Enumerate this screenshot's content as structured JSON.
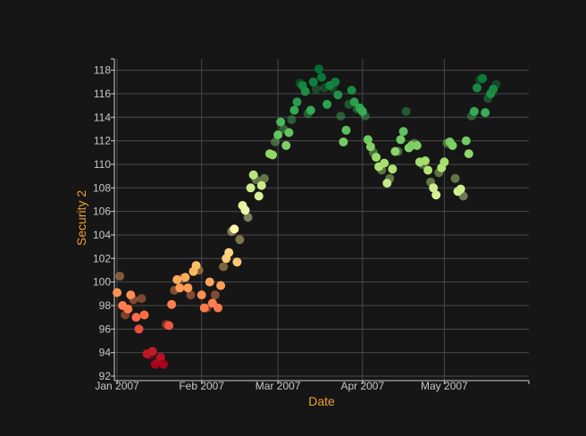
{
  "chart_data": {
    "type": "scatter",
    "xlabel": "Date",
    "ylabel": "Security 2",
    "x_ticks": [
      "Jan 2007",
      "Feb 2007",
      "Mar 2007",
      "Apr 2007",
      "May 2007"
    ],
    "x_tick_dates": [
      "2007-01-01",
      "2007-02-01",
      "2007-03-01",
      "2007-04-01",
      "2007-05-01"
    ],
    "xlim": [
      "2006-12-31",
      "2007-06-01"
    ],
    "y_ticks": [
      92,
      94,
      96,
      98,
      100,
      102,
      104,
      106,
      108,
      110,
      112,
      114,
      116,
      118
    ],
    "ylim": [
      92,
      119
    ],
    "grid": true,
    "color_scale": "red-yellow-green by y value",
    "points": [
      [
        "2007-01-02",
        100.5
      ],
      [
        "2007-01-01",
        99.1
      ],
      [
        "2007-01-03",
        98.0
      ],
      [
        "2007-01-04",
        97.2
      ],
      [
        "2007-01-05",
        97.7
      ],
      [
        "2007-01-06",
        98.9
      ],
      [
        "2007-01-07",
        98.5
      ],
      [
        "2007-01-08",
        97.0
      ],
      [
        "2007-01-09",
        96.0
      ],
      [
        "2007-01-10",
        98.6
      ],
      [
        "2007-01-11",
        97.2
      ],
      [
        "2007-01-12",
        93.9
      ],
      [
        "2007-01-13",
        93.8
      ],
      [
        "2007-01-14",
        94.1
      ],
      [
        "2007-01-15",
        93.0
      ],
      [
        "2007-01-16",
        93.4
      ],
      [
        "2007-01-17",
        93.6
      ],
      [
        "2007-01-18",
        93.0
      ],
      [
        "2007-01-19",
        96.4
      ],
      [
        "2007-01-20",
        96.3
      ],
      [
        "2007-01-21",
        98.1
      ],
      [
        "2007-01-22",
        99.3
      ],
      [
        "2007-01-23",
        100.2
      ],
      [
        "2007-01-24",
        99.5
      ],
      [
        "2007-01-25",
        100.3
      ],
      [
        "2007-01-26",
        100.4
      ],
      [
        "2007-01-27",
        99.5
      ],
      [
        "2007-01-28",
        98.9
      ],
      [
        "2007-01-29",
        100.9
      ],
      [
        "2007-01-30",
        101.4
      ],
      [
        "2007-01-31",
        101.0
      ],
      [
        "2007-02-01",
        98.9
      ],
      [
        "2007-02-02",
        97.8
      ],
      [
        "2007-02-03",
        97.8
      ],
      [
        "2007-02-04",
        100.0
      ],
      [
        "2007-02-05",
        98.2
      ],
      [
        "2007-02-06",
        98.9
      ],
      [
        "2007-02-07",
        97.8
      ],
      [
        "2007-02-08",
        99.7
      ],
      [
        "2007-02-09",
        101.3
      ],
      [
        "2007-02-10",
        102.0
      ],
      [
        "2007-02-11",
        102.5
      ],
      [
        "2007-02-12",
        104.3
      ],
      [
        "2007-02-13",
        104.5
      ],
      [
        "2007-02-14",
        101.7
      ],
      [
        "2007-02-15",
        103.6
      ],
      [
        "2007-02-16",
        106.5
      ],
      [
        "2007-02-17",
        106.1
      ],
      [
        "2007-02-18",
        105.5
      ],
      [
        "2007-02-19",
        108.0
      ],
      [
        "2007-02-20",
        109.1
      ],
      [
        "2007-02-21",
        108.7
      ],
      [
        "2007-02-22",
        107.3
      ],
      [
        "2007-02-23",
        108.2
      ],
      [
        "2007-02-24",
        108.8
      ],
      [
        "2007-02-26",
        110.9
      ],
      [
        "2007-02-27",
        110.8
      ],
      [
        "2007-02-28",
        111.9
      ],
      [
        "2007-03-01",
        112.5
      ],
      [
        "2007-03-02",
        113.6
      ],
      [
        "2007-03-03",
        113.0
      ],
      [
        "2007-03-04",
        111.6
      ],
      [
        "2007-03-05",
        112.7
      ],
      [
        "2007-03-06",
        113.8
      ],
      [
        "2007-03-07",
        114.6
      ],
      [
        "2007-03-08",
        115.3
      ],
      [
        "2007-03-09",
        116.9
      ],
      [
        "2007-03-10",
        116.7
      ],
      [
        "2007-03-11",
        116.2
      ],
      [
        "2007-03-12",
        114.3
      ],
      [
        "2007-03-13",
        114.6
      ],
      [
        "2007-03-14",
        117.0
      ],
      [
        "2007-03-15",
        116.4
      ],
      [
        "2007-03-16",
        118.1
      ],
      [
        "2007-03-17",
        117.4
      ],
      [
        "2007-03-18",
        116.5
      ],
      [
        "2007-03-19",
        115.1
      ],
      [
        "2007-03-20",
        116.7
      ],
      [
        "2007-03-21",
        116.5
      ],
      [
        "2007-03-22",
        117.0
      ],
      [
        "2007-03-23",
        115.9
      ],
      [
        "2007-03-24",
        114.1
      ],
      [
        "2007-03-25",
        111.9
      ],
      [
        "2007-03-26",
        112.9
      ],
      [
        "2007-03-27",
        115.1
      ],
      [
        "2007-03-28",
        116.3
      ],
      [
        "2007-03-29",
        115.3
      ],
      [
        "2007-03-30",
        114.7
      ],
      [
        "2007-03-31",
        114.8
      ],
      [
        "2007-04-01",
        114.5
      ],
      [
        "2007-04-02",
        114.1
      ],
      [
        "2007-04-03",
        112.1
      ],
      [
        "2007-04-04",
        111.5
      ],
      [
        "2007-04-05",
        111.0
      ],
      [
        "2007-04-06",
        110.6
      ],
      [
        "2007-04-07",
        109.8
      ],
      [
        "2007-04-08",
        109.5
      ],
      [
        "2007-04-09",
        110.1
      ],
      [
        "2007-04-10",
        108.4
      ],
      [
        "2007-04-11",
        108.8
      ],
      [
        "2007-04-12",
        109.6
      ],
      [
        "2007-04-13",
        111.1
      ],
      [
        "2007-04-14",
        111.1
      ],
      [
        "2007-04-15",
        112.1
      ],
      [
        "2007-04-16",
        112.8
      ],
      [
        "2007-04-17",
        114.5
      ],
      [
        "2007-04-18",
        111.4
      ],
      [
        "2007-04-19",
        111.6
      ],
      [
        "2007-04-20",
        111.8
      ],
      [
        "2007-04-21",
        111.6
      ],
      [
        "2007-04-22",
        110.2
      ],
      [
        "2007-04-23",
        110.0
      ],
      [
        "2007-04-24",
        110.3
      ],
      [
        "2007-04-25",
        109.5
      ],
      [
        "2007-04-26",
        108.5
      ],
      [
        "2007-04-27",
        108.0
      ],
      [
        "2007-04-28",
        107.4
      ],
      [
        "2007-04-29",
        109.3
      ],
      [
        "2007-04-30",
        109.7
      ],
      [
        "2007-05-01",
        110.2
      ],
      [
        "2007-05-02",
        111.8
      ],
      [
        "2007-05-03",
        111.9
      ],
      [
        "2007-05-04",
        111.6
      ],
      [
        "2007-05-05",
        108.8
      ],
      [
        "2007-05-06",
        107.7
      ],
      [
        "2007-05-07",
        107.9
      ],
      [
        "2007-05-08",
        107.3
      ],
      [
        "2007-05-09",
        112.0
      ],
      [
        "2007-05-10",
        110.9
      ],
      [
        "2007-05-11",
        114.1
      ],
      [
        "2007-05-12",
        114.5
      ],
      [
        "2007-05-13",
        116.5
      ],
      [
        "2007-05-14",
        117.2
      ],
      [
        "2007-05-15",
        117.3
      ],
      [
        "2007-05-16",
        114.4
      ],
      [
        "2007-05-17",
        115.6
      ],
      [
        "2007-05-18",
        116.0
      ],
      [
        "2007-05-19",
        116.4
      ],
      [
        "2007-05-20",
        116.8
      ]
    ]
  }
}
